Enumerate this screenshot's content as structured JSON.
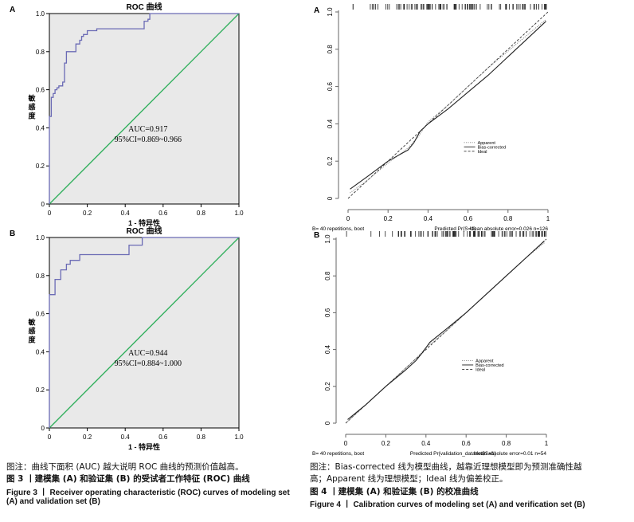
{
  "colors": {
    "roc": "#6b6bb5",
    "diag": "#33b05e",
    "panel": "#e9e9e9",
    "axis": "#000000"
  },
  "chart_data": [
    {
      "type": "line",
      "panel_label": "A",
      "title": "ROC 曲线",
      "xlabel": "1 - 特异性",
      "ylabel": "敏感度",
      "xlim": [
        0,
        1
      ],
      "ylim": [
        0,
        1
      ],
      "ticks": [
        "0",
        "0.2",
        "0.4",
        "0.6",
        "0.8",
        "1.0"
      ],
      "annotations": [
        "AUC=0.917",
        "95%CI=0.869~0.966"
      ],
      "series": [
        {
          "x": [
            0,
            0,
            0.01,
            0.01,
            0.02,
            0.02,
            0.03,
            0.03,
            0.04,
            0.04,
            0.05,
            0.05,
            0.07,
            0.07,
            0.08,
            0.08,
            0.09,
            0.09,
            0.14,
            0.14,
            0.16,
            0.16,
            0.17,
            0.17,
            0.18,
            0.18,
            0.2,
            0.2,
            0.25,
            0.25,
            0.5,
            0.5,
            0.52,
            0.52,
            0.53,
            0.53,
            0.66,
            0.66,
            1
          ],
          "y": [
            0,
            0.46,
            0.46,
            0.56,
            0.56,
            0.58,
            0.58,
            0.6,
            0.6,
            0.61,
            0.61,
            0.62,
            0.62,
            0.64,
            0.64,
            0.74,
            0.74,
            0.8,
            0.8,
            0.84,
            0.84,
            0.86,
            0.86,
            0.88,
            0.88,
            0.89,
            0.89,
            0.91,
            0.91,
            0.92,
            0.92,
            0.96,
            0.96,
            0.97,
            0.97,
            1,
            1,
            1,
            1
          ]
        },
        {
          "x": [
            0,
            1
          ],
          "y": [
            0,
            1
          ]
        }
      ]
    },
    {
      "type": "line",
      "panel_label": "B",
      "title": "ROC 曲线",
      "xlabel": "1 - 特异性",
      "ylabel": "敏感度",
      "xlim": [
        0,
        1
      ],
      "ylim": [
        0,
        1
      ],
      "ticks": [
        "0",
        "0.2",
        "0.4",
        "0.6",
        "0.8",
        "1.0"
      ],
      "annotations": [
        "AUC=0.944",
        "95%CI=0.884~1.000"
      ],
      "series": [
        {
          "x": [
            0,
            0,
            0.03,
            0.03,
            0.06,
            0.06,
            0.09,
            0.09,
            0.11,
            0.11,
            0.16,
            0.16,
            0.42,
            0.42,
            0.49,
            0.49,
            1
          ],
          "y": [
            0,
            0.7,
            0.7,
            0.78,
            0.78,
            0.83,
            0.83,
            0.86,
            0.86,
            0.88,
            0.88,
            0.91,
            0.91,
            0.96,
            0.96,
            1,
            1
          ]
        },
        {
          "x": [
            0,
            1
          ],
          "y": [
            0,
            1
          ]
        }
      ]
    },
    {
      "type": "line",
      "panel_label": "A",
      "xlim": [
        0,
        1
      ],
      "ylim": [
        0,
        1
      ],
      "xticks": [
        "0",
        "0.2",
        "0.4",
        "0.6",
        "0.8",
        "1"
      ],
      "yticks": [
        "0",
        "0.2",
        "0.4",
        "0.6",
        "0.8",
        "1.0"
      ],
      "xlabel": "Predicted Pr{S=1}",
      "footer_left": "B= 40 repetitions, boot",
      "footer_right": "Mean absolute error=0.026 n=126",
      "legend": [
        "Apparent",
        "Bias-corrected",
        "Ideal"
      ],
      "series": [
        {
          "x": [
            0.01,
            0.1,
            0.2,
            0.3,
            0.35,
            0.4,
            0.5,
            0.6,
            0.7,
            0.8,
            0.9,
            0.99
          ],
          "y": [
            0.03,
            0.1,
            0.19,
            0.27,
            0.33,
            0.41,
            0.5,
            0.6,
            0.7,
            0.79,
            0.88,
            0.96
          ]
        },
        {
          "x": [
            0.01,
            0.1,
            0.2,
            0.3,
            0.33,
            0.36,
            0.4,
            0.5,
            0.6,
            0.7,
            0.8,
            0.9,
            0.99
          ],
          "y": [
            0.05,
            0.12,
            0.2,
            0.26,
            0.3,
            0.36,
            0.4,
            0.48,
            0.57,
            0.66,
            0.76,
            0.86,
            0.95
          ]
        },
        {
          "x": [
            0,
            1
          ],
          "y": [
            0,
            1
          ]
        }
      ]
    },
    {
      "type": "line",
      "panel_label": "B",
      "xlim": [
        0,
        1
      ],
      "ylim": [
        0,
        1
      ],
      "xticks": [
        "0",
        "0.2",
        "0.4",
        "0.6",
        "0.8",
        "1"
      ],
      "yticks": [
        "0",
        "0.2",
        "0.4",
        "0.6",
        "0.8",
        "1.0"
      ],
      "xlabel": "Predicted Pr{validation_dataset$S=1}",
      "footer_left": "B= 40 repetitions, boot",
      "footer_right": "Mean absolute error=0.01 n=54",
      "legend": [
        "Apparent",
        "Bias-corrected",
        "Ideal"
      ],
      "series": [
        {
          "x": [
            0.01,
            0.1,
            0.2,
            0.3,
            0.35,
            0.4,
            0.5,
            0.6,
            0.7,
            0.8,
            0.9,
            0.99
          ],
          "y": [
            0.01,
            0.1,
            0.2,
            0.3,
            0.35,
            0.41,
            0.5,
            0.6,
            0.7,
            0.8,
            0.9,
            0.98
          ]
        },
        {
          "x": [
            0.01,
            0.1,
            0.2,
            0.3,
            0.35,
            0.38,
            0.42,
            0.5,
            0.6,
            0.7,
            0.8,
            0.9,
            0.99
          ],
          "y": [
            0.02,
            0.1,
            0.2,
            0.29,
            0.34,
            0.38,
            0.44,
            0.51,
            0.6,
            0.7,
            0.8,
            0.9,
            0.99
          ]
        },
        {
          "x": [
            0,
            1
          ],
          "y": [
            0,
            1
          ]
        }
      ]
    }
  ],
  "captions": {
    "left_note": "图注：曲线下面积 (AUC) 越大说明 ROC 曲线的预测价值越高。",
    "left_cn": "图 3 丨建模集 (A) 和验证集 (B) 的受试者工作特征 (ROC) 曲线",
    "left_en1": "Figure 3 丨 Receiver operating characteristic (ROC) curves of modeling set",
    "left_en2": "(A) and validation set (B)",
    "right_note1": "图注：Bias-corrected 线为模型曲线，越靠近理想模型即为预测准确性越",
    "right_note2": "高；Apparent 线为理想模型；Ideal 线为偏差校正。",
    "right_cn": "图 4 丨建模集 (A) 和验证集 (B) 的校准曲线",
    "right_en": "Figure 4 丨 Calibration curves of modeling set (A) and verification set (B)"
  }
}
